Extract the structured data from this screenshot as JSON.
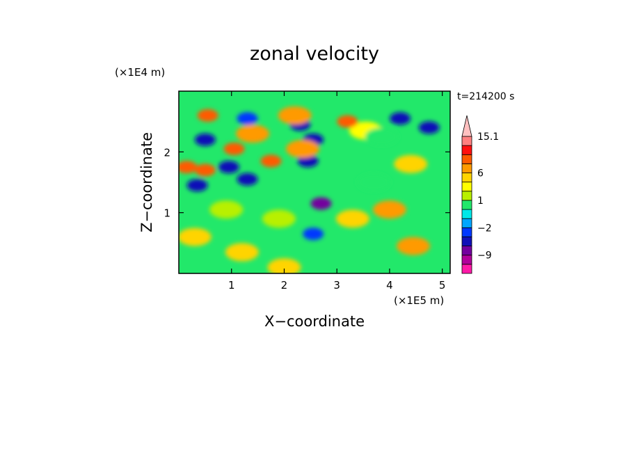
{
  "chart_data": {
    "type": "heatmap",
    "title": "zonal velocity",
    "xlabel": "X−coordinate",
    "ylabel": "Z−coordinate",
    "x_unit": "(×1E5 m)",
    "y_unit": "(×1E4 m)",
    "time_label": "t=214200 s",
    "xlim": [
      0,
      5.15
    ],
    "ylim": [
      0,
      3.0
    ],
    "x_ticks": [
      1,
      2,
      3,
      4,
      5
    ],
    "x_tick_labels": [
      "1",
      "2",
      "3",
      "4",
      "5"
    ],
    "y_ticks": [
      1,
      2
    ],
    "y_tick_labels": [
      "1",
      "2"
    ],
    "colorbar_levels": [
      -15,
      -12,
      -9,
      -6,
      -4,
      -2,
      -1,
      0,
      1,
      2,
      4,
      6,
      9,
      12,
      15.1
    ],
    "colorbar_colors": [
      "#ff1aa8",
      "#b2009b",
      "#73009e",
      "#1010b8",
      "#0038ff",
      "#00a6ff",
      "#00e8e8",
      "#22e86a",
      "#b8f000",
      "#ffff00",
      "#ffd400",
      "#ff9a00",
      "#ff5a00",
      "#ff1010",
      "#ff8080",
      "#ffc0c0"
    ],
    "colorbar_tick_labels": [
      {
        "value": 15.1,
        "text": "15.1"
      },
      {
        "value": 6,
        "text": "6"
      },
      {
        "value": 1,
        "text": "1"
      },
      {
        "value": -2,
        "text": "−2"
      },
      {
        "value": -9,
        "text": "−9"
      }
    ],
    "features": [
      {
        "x": 4.75,
        "z": 2.4,
        "value": -8
      },
      {
        "x": 4.2,
        "z": 2.55,
        "value": -7
      },
      {
        "x": 3.55,
        "z": 2.35,
        "value": 1
      },
      {
        "x": 0.5,
        "z": 2.2,
        "value": -8
      },
      {
        "x": 0.95,
        "z": 1.75,
        "value": -7
      },
      {
        "x": 1.3,
        "z": 1.55,
        "value": -9
      },
      {
        "x": 0.35,
        "z": 1.45,
        "value": -8
      },
      {
        "x": 1.3,
        "z": 2.55,
        "value": -6
      },
      {
        "x": 2.3,
        "z": 2.45,
        "value": -7
      },
      {
        "x": 2.55,
        "z": 2.2,
        "value": -8
      },
      {
        "x": 2.45,
        "z": 1.85,
        "value": -7
      },
      {
        "x": 2.7,
        "z": 1.15,
        "value": -10
      },
      {
        "x": 2.55,
        "z": 0.65,
        "value": -6
      },
      {
        "x": 0.55,
        "z": 2.6,
        "value": 7
      },
      {
        "x": 0.15,
        "z": 1.75,
        "value": 7
      },
      {
        "x": 0.5,
        "z": 1.7,
        "value": 8
      },
      {
        "x": 1.05,
        "z": 2.05,
        "value": 6
      },
      {
        "x": 1.75,
        "z": 1.85,
        "value": 6
      },
      {
        "x": 1.4,
        "z": 2.3,
        "value": 4
      },
      {
        "x": 2.2,
        "z": 2.6,
        "value": 5
      },
      {
        "x": 2.35,
        "z": 2.05,
        "value": 4
      },
      {
        "x": 3.2,
        "z": 2.5,
        "value": 6
      },
      {
        "x": 4.0,
        "z": 1.05,
        "value": 4
      },
      {
        "x": 4.45,
        "z": 0.45,
        "value": 4
      },
      {
        "x": 3.3,
        "z": 0.9,
        "value": 3
      },
      {
        "x": 4.4,
        "z": 1.8,
        "value": 2
      },
      {
        "x": 1.2,
        "z": 0.35,
        "value": 2
      },
      {
        "x": 2.0,
        "z": 0.1,
        "value": 2
      },
      {
        "x": 0.3,
        "z": 0.6,
        "value": 2
      },
      {
        "x": 0.9,
        "z": 1.05,
        "value": 0
      },
      {
        "x": 3.85,
        "z": 2.25,
        "value": -1
      },
      {
        "x": 3.7,
        "z": 1.5,
        "value": -0.5
      },
      {
        "x": 1.9,
        "z": 0.9,
        "value": 0
      }
    ]
  }
}
